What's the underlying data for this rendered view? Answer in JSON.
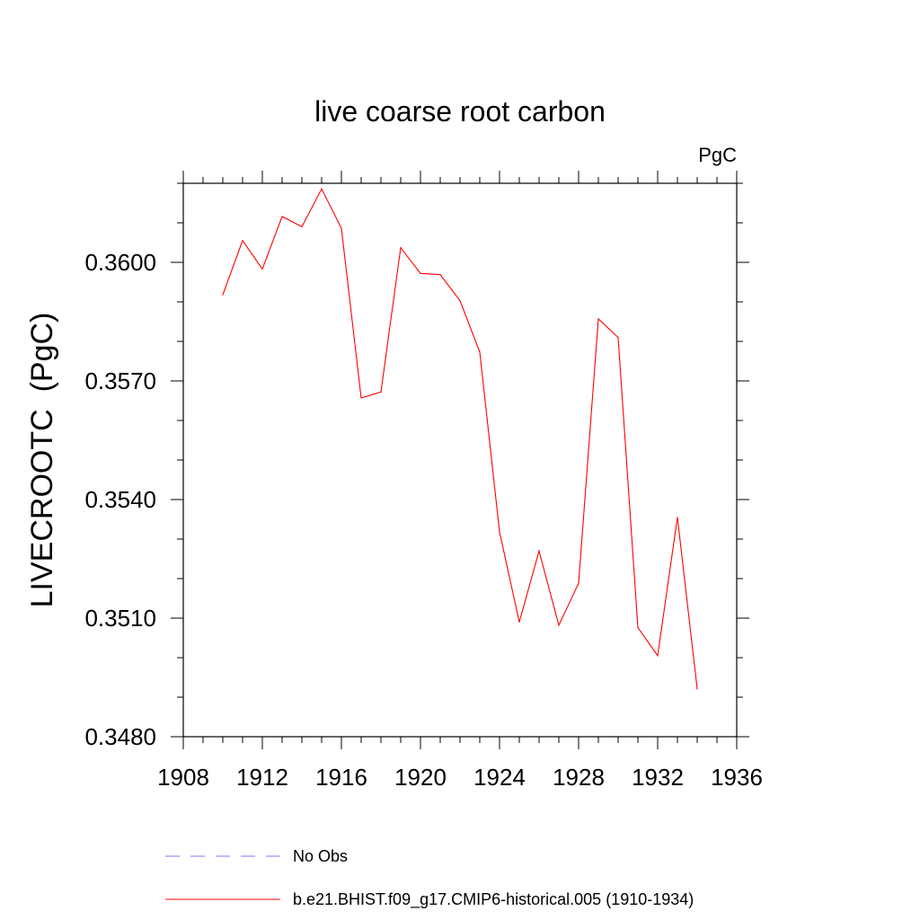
{
  "chart_data": {
    "type": "line",
    "title": "live coarse root carbon",
    "units_label": "PgC",
    "xlabel": "",
    "ylabel": "LIVECROOTC  (PgC)",
    "xlim": [
      1908,
      1936
    ],
    "ylim": [
      0.348,
      0.362
    ],
    "x_ticks": [
      1908,
      1912,
      1916,
      1920,
      1924,
      1928,
      1932,
      1936
    ],
    "y_ticks": [
      0.348,
      0.351,
      0.354,
      0.357,
      0.36
    ],
    "y_tick_labels": [
      "0.3480",
      "0.3510",
      "0.3540",
      "0.3570",
      "0.3600"
    ],
    "grid": false,
    "series": [
      {
        "name": "b.e21.BHIST.f09_g17.CMIP6-historical.005 (1910-1934)",
        "color": "#ff0000",
        "style": "solid",
        "x": [
          1910,
          1911,
          1912,
          1913,
          1914,
          1915,
          1916,
          1917,
          1918,
          1919,
          1920,
          1921,
          1922,
          1923,
          1924,
          1925,
          1926,
          1927,
          1928,
          1929,
          1930,
          1931,
          1932,
          1933,
          1934
        ],
        "y": [
          0.35918,
          0.36055,
          0.35983,
          0.36116,
          0.3609,
          0.36186,
          0.36086,
          0.35657,
          0.35672,
          0.36037,
          0.35972,
          0.35969,
          0.35903,
          0.35773,
          0.35318,
          0.3509,
          0.3527,
          0.35082,
          0.35188,
          0.35857,
          0.3581,
          0.35076,
          0.35005,
          0.35355,
          0.34921
        ]
      }
    ],
    "legend": [
      {
        "label": "No Obs",
        "color": "#7777ff",
        "style": "dashed"
      },
      {
        "label": "b.e21.BHIST.f09_g17.CMIP6-historical.005 (1910-1934)",
        "color": "#ff0000",
        "style": "solid"
      }
    ],
    "legend_position": "bottom"
  }
}
